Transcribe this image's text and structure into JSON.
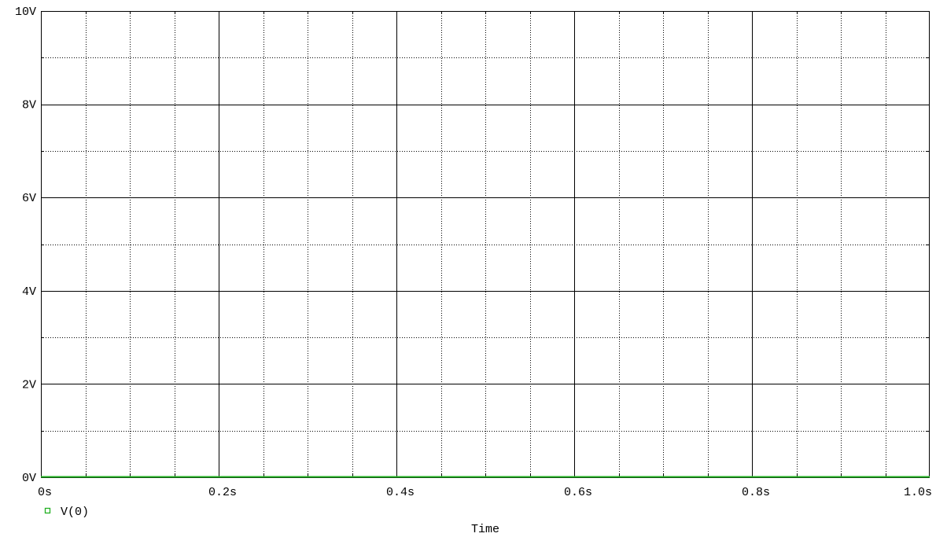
{
  "chart_data": {
    "type": "line",
    "title": "",
    "xlabel": "Time",
    "ylabel": "",
    "xlim": [
      0,
      1.0
    ],
    "ylim": [
      0,
      10
    ],
    "x_ticks": [
      {
        "value": 0,
        "label": "0s"
      },
      {
        "value": 0.2,
        "label": "0.2s"
      },
      {
        "value": 0.4,
        "label": "0.4s"
      },
      {
        "value": 0.6,
        "label": "0.6s"
      },
      {
        "value": 0.8,
        "label": "0.8s"
      },
      {
        "value": 1.0,
        "label": "1.0s"
      }
    ],
    "y_ticks": [
      {
        "value": 0,
        "label": "0V"
      },
      {
        "value": 2,
        "label": "2V"
      },
      {
        "value": 4,
        "label": "4V"
      },
      {
        "value": 6,
        "label": "6V"
      },
      {
        "value": 8,
        "label": "8V"
      },
      {
        "value": 10,
        "label": "10V"
      }
    ],
    "x_minor_step": 0.05,
    "y_minor_step": 1,
    "grid": true,
    "legend_position": "bottom-left",
    "series": [
      {
        "name": "V(0)",
        "color": "#22b022",
        "marker": "hollow-square",
        "x": [
          0,
          1.0
        ],
        "y": [
          0,
          0
        ]
      }
    ]
  }
}
